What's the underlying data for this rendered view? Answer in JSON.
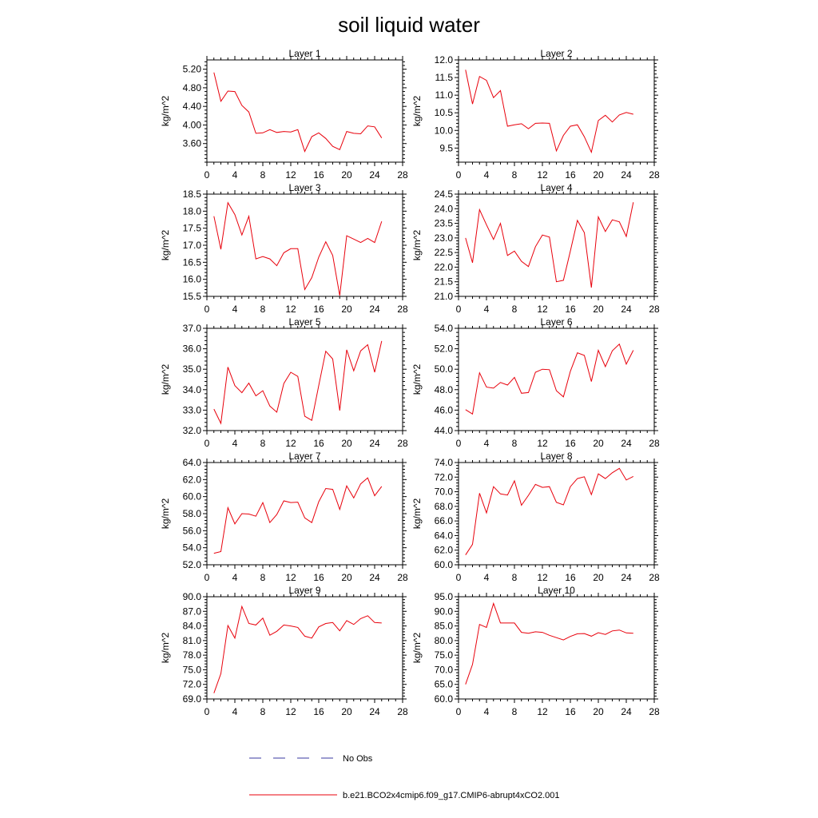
{
  "figure": {
    "title": "soil liquid water",
    "legend": [
      {
        "label": "No Obs",
        "color": "#3a3aa0",
        "style": "dashed"
      },
      {
        "label": "b.e21.BCO2x4cmip6.f09_g17.CMIP6-abrupt4xCO2.001",
        "color": "#e8000b",
        "style": "solid"
      }
    ]
  },
  "chart_data": [
    {
      "type": "line",
      "title": "Layer 1",
      "ylabel": "kg/m^2",
      "xlim": [
        0,
        28
      ],
      "ylim": [
        3.2,
        5.4
      ],
      "xticks": [
        "0",
        "4",
        "8",
        "12",
        "16",
        "20",
        "24",
        "28"
      ],
      "yticks": [
        "3.60",
        "4.00",
        "4.40",
        "4.80",
        "5.20"
      ],
      "series": [
        {
          "color": "#e8000b",
          "x": [
            1,
            2,
            3,
            4,
            5,
            6,
            7,
            8,
            9,
            10,
            11,
            12,
            13,
            14,
            15,
            16,
            17,
            18,
            19,
            20,
            21,
            22,
            23,
            24,
            25
          ],
          "y": [
            5.13,
            4.51,
            4.73,
            4.72,
            4.42,
            4.28,
            3.82,
            3.83,
            3.9,
            3.84,
            3.86,
            3.85,
            3.9,
            3.43,
            3.75,
            3.83,
            3.71,
            3.54,
            3.47,
            3.86,
            3.82,
            3.81,
            3.98,
            3.96,
            3.72
          ]
        }
      ]
    },
    {
      "type": "line",
      "title": "Layer 2",
      "ylabel": "kg/m^2",
      "xlim": [
        0,
        28
      ],
      "ylim": [
        9.1,
        12.0
      ],
      "xticks": [
        "0",
        "4",
        "8",
        "12",
        "16",
        "20",
        "24",
        "28"
      ],
      "yticks": [
        "9.5",
        "10.0",
        "10.5",
        "11.0",
        "11.5",
        "12.0"
      ],
      "series": [
        {
          "color": "#e8000b",
          "x": [
            1,
            2,
            3,
            4,
            5,
            6,
            7,
            8,
            9,
            10,
            11,
            12,
            13,
            14,
            15,
            16,
            17,
            18,
            19,
            20,
            21,
            22,
            23,
            24,
            25
          ],
          "y": [
            11.72,
            10.75,
            11.53,
            11.42,
            10.93,
            11.13,
            10.12,
            10.16,
            10.19,
            10.05,
            10.2,
            10.21,
            10.2,
            9.42,
            9.86,
            10.12,
            10.16,
            9.82,
            9.38,
            10.28,
            10.43,
            10.24,
            10.44,
            10.51,
            10.46
          ]
        }
      ]
    },
    {
      "type": "line",
      "title": "Layer 3",
      "ylabel": "kg/m^2",
      "xlim": [
        0,
        28
      ],
      "ylim": [
        15.5,
        18.5
      ],
      "xticks": [
        "0",
        "4",
        "8",
        "12",
        "16",
        "20",
        "24",
        "28"
      ],
      "yticks": [
        "15.5",
        "16.0",
        "16.5",
        "17.0",
        "17.5",
        "18.0",
        "18.5"
      ],
      "series": [
        {
          "color": "#e8000b",
          "x": [
            1,
            2,
            3,
            4,
            5,
            6,
            7,
            8,
            9,
            10,
            11,
            12,
            13,
            14,
            15,
            16,
            17,
            18,
            19,
            20,
            21,
            22,
            23,
            24,
            25
          ],
          "y": [
            17.85,
            16.88,
            18.25,
            17.9,
            17.3,
            17.85,
            16.6,
            16.67,
            16.6,
            16.4,
            16.78,
            16.9,
            16.9,
            15.7,
            16.05,
            16.65,
            17.1,
            16.7,
            15.52,
            17.28,
            17.18,
            17.08,
            17.2,
            17.08,
            17.7
          ]
        }
      ]
    },
    {
      "type": "line",
      "title": "Layer 4",
      "ylabel": "kg/m^2",
      "xlim": [
        0,
        28
      ],
      "ylim": [
        21.0,
        24.5
      ],
      "xticks": [
        "0",
        "4",
        "8",
        "12",
        "16",
        "20",
        "24",
        "28"
      ],
      "yticks": [
        "21.0",
        "21.5",
        "22.0",
        "22.5",
        "23.0",
        "23.5",
        "24.0",
        "24.5"
      ],
      "series": [
        {
          "color": "#e8000b",
          "x": [
            1,
            2,
            3,
            4,
            5,
            6,
            7,
            8,
            9,
            10,
            11,
            12,
            13,
            14,
            15,
            16,
            17,
            18,
            19,
            20,
            21,
            22,
            23,
            24,
            25
          ],
          "y": [
            23.0,
            22.15,
            23.97,
            23.45,
            22.95,
            23.5,
            22.4,
            22.55,
            22.2,
            22.02,
            22.7,
            23.1,
            23.03,
            21.5,
            21.55,
            22.55,
            23.6,
            23.18,
            21.3,
            23.72,
            23.22,
            23.62,
            23.55,
            23.05,
            24.22
          ]
        }
      ]
    },
    {
      "type": "line",
      "title": "Layer 5",
      "ylabel": "kg/m^2",
      "xlim": [
        0,
        28
      ],
      "ylim": [
        32.0,
        37.0
      ],
      "xticks": [
        "0",
        "4",
        "8",
        "12",
        "16",
        "20",
        "24",
        "28"
      ],
      "yticks": [
        "32.0",
        "33.0",
        "34.0",
        "35.0",
        "36.0",
        "37.0"
      ],
      "series": [
        {
          "color": "#e8000b",
          "x": [
            1,
            2,
            3,
            4,
            5,
            6,
            7,
            8,
            9,
            10,
            11,
            12,
            13,
            14,
            15,
            16,
            17,
            18,
            19,
            20,
            21,
            22,
            23,
            24,
            25
          ],
          "y": [
            33.05,
            32.35,
            35.1,
            34.2,
            33.85,
            34.32,
            33.7,
            33.95,
            33.2,
            32.9,
            34.3,
            34.85,
            34.65,
            32.7,
            32.5,
            34.2,
            35.88,
            35.5,
            32.98,
            35.95,
            34.92,
            35.9,
            36.2,
            34.85,
            36.38
          ]
        }
      ]
    },
    {
      "type": "line",
      "title": "Layer 6",
      "ylabel": "kg/m^2",
      "xlim": [
        0,
        28
      ],
      "ylim": [
        44.0,
        54.0
      ],
      "xticks": [
        "0",
        "4",
        "8",
        "12",
        "16",
        "20",
        "24",
        "28"
      ],
      "yticks": [
        "44.0",
        "46.0",
        "48.0",
        "50.0",
        "52.0",
        "54.0"
      ],
      "series": [
        {
          "color": "#e8000b",
          "x": [
            1,
            2,
            3,
            4,
            5,
            6,
            7,
            8,
            9,
            10,
            11,
            12,
            13,
            14,
            15,
            16,
            17,
            18,
            19,
            20,
            21,
            22,
            23,
            24,
            25
          ],
          "y": [
            46.05,
            45.62,
            49.65,
            48.25,
            48.15,
            48.7,
            48.45,
            49.2,
            47.65,
            47.72,
            49.7,
            50.0,
            49.95,
            47.9,
            47.3,
            49.8,
            51.6,
            51.35,
            48.8,
            51.85,
            50.25,
            51.8,
            52.45,
            50.5,
            51.85
          ]
        }
      ]
    },
    {
      "type": "line",
      "title": "Layer 7",
      "ylabel": "kg/m^2",
      "xlim": [
        0,
        28
      ],
      "ylim": [
        52.0,
        64.0
      ],
      "xticks": [
        "0",
        "4",
        "8",
        "12",
        "16",
        "20",
        "24",
        "28"
      ],
      "yticks": [
        "52.0",
        "54.0",
        "56.0",
        "58.0",
        "60.0",
        "62.0",
        "64.0"
      ],
      "series": [
        {
          "color": "#e8000b",
          "x": [
            1,
            2,
            3,
            4,
            5,
            6,
            7,
            8,
            9,
            10,
            11,
            12,
            13,
            14,
            15,
            16,
            17,
            18,
            19,
            20,
            21,
            22,
            23,
            24,
            25
          ],
          "y": [
            53.35,
            53.55,
            58.7,
            56.8,
            58.0,
            57.95,
            57.7,
            59.3,
            56.95,
            57.9,
            59.5,
            59.3,
            59.35,
            57.5,
            56.95,
            59.4,
            60.95,
            60.85,
            58.5,
            61.25,
            59.85,
            61.5,
            62.2,
            60.1,
            61.2
          ]
        }
      ]
    },
    {
      "type": "line",
      "title": "Layer 8",
      "ylabel": "kg/m^2",
      "xlim": [
        0,
        28
      ],
      "ylim": [
        60.0,
        74.0
      ],
      "xticks": [
        "0",
        "4",
        "8",
        "12",
        "16",
        "20",
        "24",
        "28"
      ],
      "yticks": [
        "60.0",
        "62.0",
        "64.0",
        "66.0",
        "68.0",
        "70.0",
        "72.0",
        "74.0"
      ],
      "series": [
        {
          "color": "#e8000b",
          "x": [
            1,
            2,
            3,
            4,
            5,
            6,
            7,
            8,
            9,
            10,
            11,
            12,
            13,
            14,
            15,
            16,
            17,
            18,
            19,
            20,
            21,
            22,
            23,
            24,
            25
          ],
          "y": [
            61.35,
            62.8,
            69.8,
            67.1,
            70.7,
            69.7,
            69.55,
            71.5,
            68.15,
            69.5,
            71.0,
            70.6,
            70.7,
            68.55,
            68.2,
            70.7,
            71.8,
            72.05,
            69.6,
            72.45,
            71.8,
            72.6,
            73.2,
            71.6,
            72.1
          ]
        }
      ]
    },
    {
      "type": "line",
      "title": "Layer 9",
      "ylabel": "kg/m^2",
      "xlim": [
        0,
        28
      ],
      "ylim": [
        69.0,
        90.0
      ],
      "xticks": [
        "0",
        "4",
        "8",
        "12",
        "16",
        "20",
        "24",
        "28"
      ],
      "yticks": [
        "69.0",
        "72.0",
        "75.0",
        "78.0",
        "81.0",
        "84.0",
        "87.0",
        "90.0"
      ],
      "series": [
        {
          "color": "#e8000b",
          "x": [
            1,
            2,
            3,
            4,
            5,
            6,
            7,
            8,
            9,
            10,
            11,
            12,
            13,
            14,
            15,
            16,
            17,
            18,
            19,
            20,
            21,
            22,
            23,
            24,
            25
          ],
          "y": [
            70.2,
            74.2,
            84.1,
            81.5,
            88.0,
            84.5,
            84.2,
            85.6,
            82.1,
            82.9,
            84.2,
            84.0,
            83.7,
            81.9,
            81.5,
            83.8,
            84.5,
            84.7,
            83.0,
            85.1,
            84.3,
            85.5,
            86.1,
            84.7,
            84.6
          ]
        }
      ]
    },
    {
      "type": "line",
      "title": "Layer 10",
      "ylabel": "kg/m^2",
      "xlim": [
        0,
        28
      ],
      "ylim": [
        60.0,
        95.0
      ],
      "xticks": [
        "0",
        "4",
        "8",
        "12",
        "16",
        "20",
        "24",
        "28"
      ],
      "yticks": [
        "60.0",
        "65.0",
        "70.0",
        "75.0",
        "80.0",
        "85.0",
        "90.0",
        "95.0"
      ],
      "series": [
        {
          "color": "#e8000b",
          "x": [
            1,
            2,
            3,
            4,
            5,
            6,
            7,
            8,
            9,
            10,
            11,
            12,
            13,
            14,
            15,
            16,
            17,
            18,
            19,
            20,
            21,
            22,
            23,
            24,
            25
          ],
          "y": [
            65.0,
            71.8,
            85.5,
            84.5,
            92.7,
            86.0,
            86.0,
            86.0,
            82.8,
            82.5,
            83.0,
            82.8,
            81.8,
            81.0,
            80.2,
            81.4,
            82.3,
            82.4,
            81.5,
            82.7,
            82.1,
            83.3,
            83.6,
            82.6,
            82.5
          ]
        }
      ]
    }
  ]
}
